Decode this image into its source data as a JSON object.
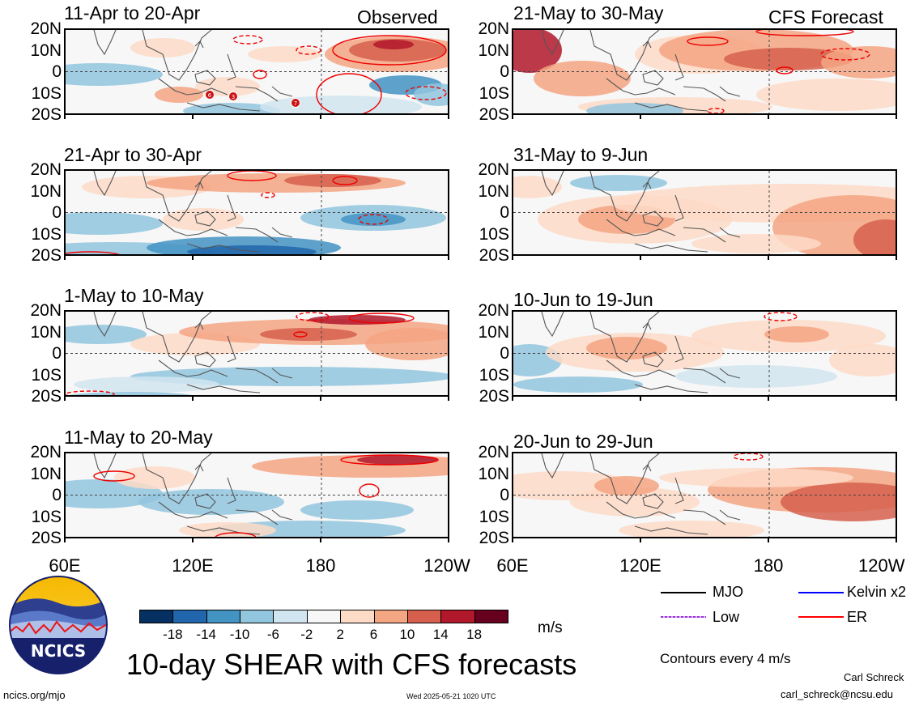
{
  "header": {
    "left": "Observed",
    "right": "CFS Forecast"
  },
  "panels": [
    {
      "title": "11-Apr to 20-Apr"
    },
    {
      "title": "21-Apr to 30-Apr"
    },
    {
      "title": "1-May to 10-May"
    },
    {
      "title": "11-May to 20-May"
    },
    {
      "title": "21-May to 30-May"
    },
    {
      "title": "31-May to 9-Jun"
    },
    {
      "title": "10-Jun to 19-Jun"
    },
    {
      "title": "20-Jun to 29-Jun"
    }
  ],
  "lat_labels": [
    "20N",
    "10N",
    "0",
    "10S",
    "20S"
  ],
  "lon_labels": [
    "60E",
    "120E",
    "180",
    "120W"
  ],
  "storm_markers": [
    "6",
    "3",
    "7"
  ],
  "colorbar": {
    "unit": "m/s",
    "ticks": [
      "-18",
      "-14",
      "-10",
      "-6",
      "-2",
      "2",
      "6",
      "10",
      "14",
      "18"
    ],
    "colors": [
      "#053061",
      "#2166ac",
      "#4393c3",
      "#92c5de",
      "#d1e5f0",
      "#f7f7f7",
      "#fddbc7",
      "#f4a582",
      "#d6604d",
      "#b2182b",
      "#67001f"
    ]
  },
  "legend": {
    "items": [
      {
        "label": "MJO",
        "color": "#000000"
      },
      {
        "label": "Kelvin x2",
        "color": "#0000ff"
      },
      {
        "label": "Low",
        "color": "#9b30d9"
      },
      {
        "label": "ER",
        "color": "#ff0000"
      }
    ],
    "contour_note": "Contours every 4 m/s"
  },
  "main_title": "10-day SHEAR with CFS forecasts",
  "logo_text": "NCICS",
  "footer": {
    "url": "ncics.org/mjo",
    "timestamp": "Wed 2025-05-21 1020 UTC",
    "author": "Carl Schreck",
    "email": "carl_schreck@ncsu.edu"
  }
}
